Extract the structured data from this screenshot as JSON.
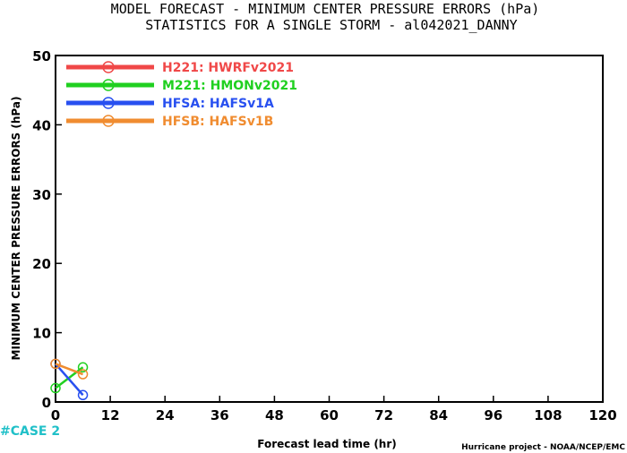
{
  "chart_data": {
    "type": "line",
    "title": "MODEL FORECAST - MINIMUM CENTER PRESSURE ERRORS (hPa)",
    "subtitle": "STATISTICS FOR A SINGLE STORM - al042021_DANNY",
    "xlabel": "Forecast lead time (hr)",
    "ylabel": "MINIMUM CENTER PRESSURE ERRORS (hPa)",
    "xlim": [
      0,
      120
    ],
    "ylim": [
      0,
      50
    ],
    "x_ticks": [
      "0",
      "12",
      "24",
      "36",
      "48",
      "60",
      "72",
      "84",
      "96",
      "108",
      "120"
    ],
    "y_ticks": [
      "0",
      "10",
      "20",
      "30",
      "40",
      "50"
    ],
    "grid": false,
    "legend_position": "top-left",
    "series": [
      {
        "name": "H221: HWRFv2021",
        "color": "#f04848",
        "x": [],
        "y": []
      },
      {
        "name": "M221: HMONv2021",
        "color": "#20d020",
        "x": [
          0,
          6
        ],
        "y": [
          2,
          5
        ]
      },
      {
        "name": "HFSA: HAFSv1A",
        "color": "#2850f0",
        "x": [
          0,
          6
        ],
        "y": [
          5.5,
          1
        ]
      },
      {
        "name": "HFSB: HAFSv1B",
        "color": "#f08c30",
        "x": [
          0,
          6
        ],
        "y": [
          5.5,
          4
        ]
      }
    ],
    "annotations": {
      "case_count": "#CASE  2",
      "credit": "Hurricane project - NOAA/NCEP/EMC"
    }
  }
}
